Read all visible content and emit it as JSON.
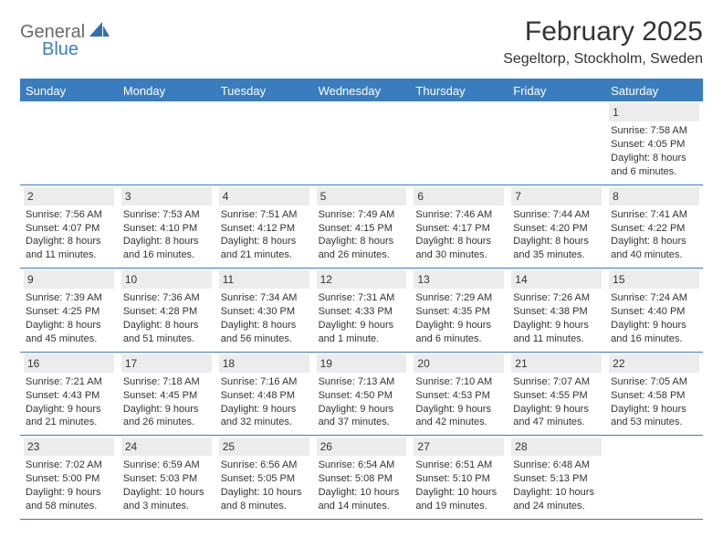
{
  "logo": {
    "word1": "General",
    "word2": "Blue"
  },
  "title": "February 2025",
  "location": "Segeltorp, Stockholm, Sweden",
  "colors": {
    "header_bar": "#3a7dbf",
    "daynum_bg": "#ececec",
    "text": "#333333",
    "logo_gray": "#6a6a6a",
    "logo_blue": "#3b7fc4"
  },
  "weekdays": [
    "Sunday",
    "Monday",
    "Tuesday",
    "Wednesday",
    "Thursday",
    "Friday",
    "Saturday"
  ],
  "weeks": [
    [
      null,
      null,
      null,
      null,
      null,
      null,
      {
        "n": "1",
        "sr": "Sunrise: 7:58 AM",
        "ss": "Sunset: 4:05 PM",
        "d1": "Daylight: 8 hours",
        "d2": "and 6 minutes."
      }
    ],
    [
      {
        "n": "2",
        "sr": "Sunrise: 7:56 AM",
        "ss": "Sunset: 4:07 PM",
        "d1": "Daylight: 8 hours",
        "d2": "and 11 minutes."
      },
      {
        "n": "3",
        "sr": "Sunrise: 7:53 AM",
        "ss": "Sunset: 4:10 PM",
        "d1": "Daylight: 8 hours",
        "d2": "and 16 minutes."
      },
      {
        "n": "4",
        "sr": "Sunrise: 7:51 AM",
        "ss": "Sunset: 4:12 PM",
        "d1": "Daylight: 8 hours",
        "d2": "and 21 minutes."
      },
      {
        "n": "5",
        "sr": "Sunrise: 7:49 AM",
        "ss": "Sunset: 4:15 PM",
        "d1": "Daylight: 8 hours",
        "d2": "and 26 minutes."
      },
      {
        "n": "6",
        "sr": "Sunrise: 7:46 AM",
        "ss": "Sunset: 4:17 PM",
        "d1": "Daylight: 8 hours",
        "d2": "and 30 minutes."
      },
      {
        "n": "7",
        "sr": "Sunrise: 7:44 AM",
        "ss": "Sunset: 4:20 PM",
        "d1": "Daylight: 8 hours",
        "d2": "and 35 minutes."
      },
      {
        "n": "8",
        "sr": "Sunrise: 7:41 AM",
        "ss": "Sunset: 4:22 PM",
        "d1": "Daylight: 8 hours",
        "d2": "and 40 minutes."
      }
    ],
    [
      {
        "n": "9",
        "sr": "Sunrise: 7:39 AM",
        "ss": "Sunset: 4:25 PM",
        "d1": "Daylight: 8 hours",
        "d2": "and 45 minutes."
      },
      {
        "n": "10",
        "sr": "Sunrise: 7:36 AM",
        "ss": "Sunset: 4:28 PM",
        "d1": "Daylight: 8 hours",
        "d2": "and 51 minutes."
      },
      {
        "n": "11",
        "sr": "Sunrise: 7:34 AM",
        "ss": "Sunset: 4:30 PM",
        "d1": "Daylight: 8 hours",
        "d2": "and 56 minutes."
      },
      {
        "n": "12",
        "sr": "Sunrise: 7:31 AM",
        "ss": "Sunset: 4:33 PM",
        "d1": "Daylight: 9 hours",
        "d2": "and 1 minute."
      },
      {
        "n": "13",
        "sr": "Sunrise: 7:29 AM",
        "ss": "Sunset: 4:35 PM",
        "d1": "Daylight: 9 hours",
        "d2": "and 6 minutes."
      },
      {
        "n": "14",
        "sr": "Sunrise: 7:26 AM",
        "ss": "Sunset: 4:38 PM",
        "d1": "Daylight: 9 hours",
        "d2": "and 11 minutes."
      },
      {
        "n": "15",
        "sr": "Sunrise: 7:24 AM",
        "ss": "Sunset: 4:40 PM",
        "d1": "Daylight: 9 hours",
        "d2": "and 16 minutes."
      }
    ],
    [
      {
        "n": "16",
        "sr": "Sunrise: 7:21 AM",
        "ss": "Sunset: 4:43 PM",
        "d1": "Daylight: 9 hours",
        "d2": "and 21 minutes."
      },
      {
        "n": "17",
        "sr": "Sunrise: 7:18 AM",
        "ss": "Sunset: 4:45 PM",
        "d1": "Daylight: 9 hours",
        "d2": "and 26 minutes."
      },
      {
        "n": "18",
        "sr": "Sunrise: 7:16 AM",
        "ss": "Sunset: 4:48 PM",
        "d1": "Daylight: 9 hours",
        "d2": "and 32 minutes."
      },
      {
        "n": "19",
        "sr": "Sunrise: 7:13 AM",
        "ss": "Sunset: 4:50 PM",
        "d1": "Daylight: 9 hours",
        "d2": "and 37 minutes."
      },
      {
        "n": "20",
        "sr": "Sunrise: 7:10 AM",
        "ss": "Sunset: 4:53 PM",
        "d1": "Daylight: 9 hours",
        "d2": "and 42 minutes."
      },
      {
        "n": "21",
        "sr": "Sunrise: 7:07 AM",
        "ss": "Sunset: 4:55 PM",
        "d1": "Daylight: 9 hours",
        "d2": "and 47 minutes."
      },
      {
        "n": "22",
        "sr": "Sunrise: 7:05 AM",
        "ss": "Sunset: 4:58 PM",
        "d1": "Daylight: 9 hours",
        "d2": "and 53 minutes."
      }
    ],
    [
      {
        "n": "23",
        "sr": "Sunrise: 7:02 AM",
        "ss": "Sunset: 5:00 PM",
        "d1": "Daylight: 9 hours",
        "d2": "and 58 minutes."
      },
      {
        "n": "24",
        "sr": "Sunrise: 6:59 AM",
        "ss": "Sunset: 5:03 PM",
        "d1": "Daylight: 10 hours",
        "d2": "and 3 minutes."
      },
      {
        "n": "25",
        "sr": "Sunrise: 6:56 AM",
        "ss": "Sunset: 5:05 PM",
        "d1": "Daylight: 10 hours",
        "d2": "and 8 minutes."
      },
      {
        "n": "26",
        "sr": "Sunrise: 6:54 AM",
        "ss": "Sunset: 5:08 PM",
        "d1": "Daylight: 10 hours",
        "d2": "and 14 minutes."
      },
      {
        "n": "27",
        "sr": "Sunrise: 6:51 AM",
        "ss": "Sunset: 5:10 PM",
        "d1": "Daylight: 10 hours",
        "d2": "and 19 minutes."
      },
      {
        "n": "28",
        "sr": "Sunrise: 6:48 AM",
        "ss": "Sunset: 5:13 PM",
        "d1": "Daylight: 10 hours",
        "d2": "and 24 minutes."
      },
      null
    ]
  ]
}
